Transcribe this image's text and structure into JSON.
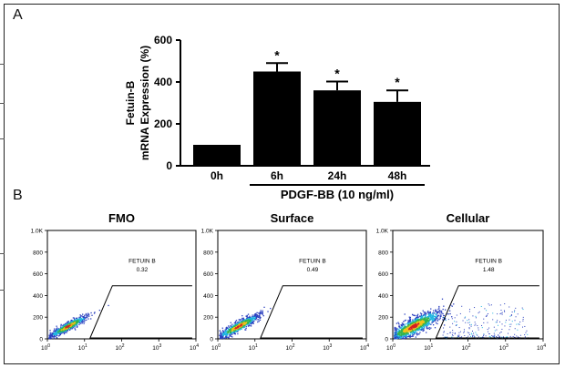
{
  "panel_a": {
    "label": "A",
    "chart_data": {
      "type": "bar",
      "ylabel_line1": "Fetuin-B",
      "ylabel_line2": "mRNA Expression (%)",
      "categories": [
        "0h",
        "6h",
        "24h",
        "48h"
      ],
      "values": [
        100,
        450,
        360,
        305
      ],
      "errors": [
        0,
        40,
        42,
        55
      ],
      "significance": [
        "",
        "*",
        "*",
        "*"
      ],
      "ylim": [
        0,
        600
      ],
      "yticks": [
        "0",
        "200",
        "400",
        "600"
      ],
      "ytick_values": [
        0,
        200,
        400,
        600
      ],
      "treatment_label": "PDGF-BB (10 ng/ml)",
      "bar_color": "#000000"
    }
  },
  "panel_b": {
    "label": "B",
    "chart_data": [
      {
        "type": "scatter",
        "title": "FMO",
        "gate_label": "FETUIN B",
        "gate_value": "0.32",
        "spread": 0.0
      },
      {
        "type": "scatter",
        "title": "Surface",
        "gate_label": "FETUIN B",
        "gate_value": "0.49",
        "spread": 0.2
      },
      {
        "type": "scatter",
        "title": "Cellular",
        "gate_label": "FETUIN B",
        "gate_value": "1.48",
        "spread": 1.0
      }
    ],
    "y_ticks": [
      "0",
      "200",
      "400",
      "600",
      "800",
      "1.0K"
    ],
    "y_tick_values": [
      0,
      200,
      400,
      600,
      800,
      1000
    ],
    "x_ticks": [
      {
        "base": "10",
        "exp": "0",
        "value": 0
      },
      {
        "base": "10",
        "exp": "1",
        "value": 1
      },
      {
        "base": "10",
        "exp": "2",
        "value": 2
      },
      {
        "base": "10",
        "exp": "3",
        "value": 3
      },
      {
        "base": "10",
        "exp": "4",
        "value": 4
      }
    ]
  }
}
